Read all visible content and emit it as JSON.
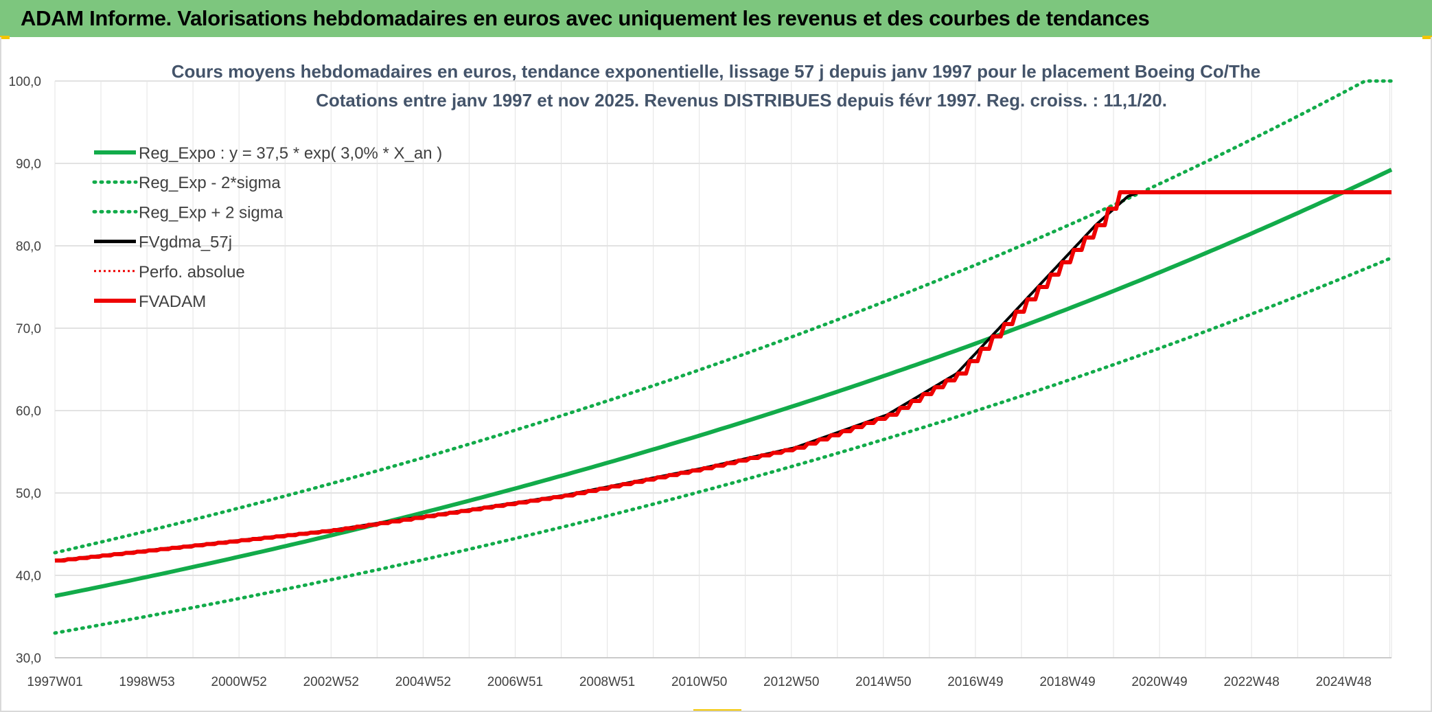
{
  "banner": {
    "title": "ADAM Informe. Valorisations hebdomadaires en euros avec uniquement les revenus et des courbes de tendances"
  },
  "colors": {
    "banner_bg": "#7dc67e",
    "accent_yellow": "#f2c500",
    "green": "#12ab4a",
    "red": "#ee0000",
    "black": "#000000"
  },
  "chart_data": {
    "type": "line",
    "title": "Cours moyens hebdomadaires en euros, tendance exponentielle, lissage 57 j depuis janv 1997 pour le placement Boeing Co/The",
    "subtitle": "Cotations entre janv 1997 et nov 2025. Revenus DISTRIBUES depuis févr 1997. Reg. croiss. : 11,1/20.",
    "xlabel": "",
    "ylabel": "",
    "x_tick_labels": [
      "1997W01",
      "1998W53",
      "2000W52",
      "2002W52",
      "2004W52",
      "2006W51",
      "2008W51",
      "2010W50",
      "2012W50",
      "2014W50",
      "2016W49",
      "2018W49",
      "2020W49",
      "2022W48",
      "2024W48"
    ],
    "y_tick_labels": [
      "30,0",
      "40,0",
      "50,0",
      "60,0",
      "70,0",
      "80,0",
      "90,0",
      "100,0"
    ],
    "ylim": [
      30,
      100
    ],
    "x_range_years": [
      1997.0,
      2025.9
    ],
    "grid": true,
    "legend_position": "top-left",
    "series": [
      {
        "name": "Reg_Expo : y = 37,5 * exp( 3,0% *  X_an )",
        "style": "solid-thick",
        "color": "#12ab4a",
        "formula": {
          "a": 37.5,
          "rate": 0.03,
          "sigma_mult": 1.0
        }
      },
      {
        "name": "Reg_Exp - 2*sigma",
        "style": "dotted",
        "color": "#12ab4a",
        "formula": {
          "a": 37.5,
          "rate": 0.03,
          "sigma_mult": 0.88
        }
      },
      {
        "name": "Reg_Exp + 2 sigma",
        "style": "dotted",
        "color": "#12ab4a",
        "formula": {
          "a": 37.5,
          "rate": 0.03,
          "sigma_mult": 1.14
        }
      },
      {
        "name": "FVgdma_57j",
        "style": "solid",
        "color": "#000000",
        "x": [
          1997.0,
          2003.0,
          2008.0,
          2011.0,
          2013.0,
          2015.0,
          2016.5,
          2017.5,
          2018.5,
          2019.5,
          2020.2,
          2020.45,
          2025.9
        ],
        "y": [
          41.8,
          45.5,
          49.7,
          53.0,
          55.5,
          59.5,
          64.5,
          70.5,
          76.5,
          82.5,
          86.0,
          86.5,
          86.5
        ]
      },
      {
        "name": "Perfo. absolue",
        "style": "dotted",
        "color": "#ee0000",
        "hidden_behind": "FVADAM"
      },
      {
        "name": "FVADAM",
        "style": "solid-thick-stepped",
        "color": "#ee0000",
        "x": [
          1997.0,
          2003.0,
          2008.0,
          2011.0,
          2013.0,
          2015.0,
          2016.5,
          2017.5,
          2018.5,
          2019.5,
          2020.0,
          2020.2,
          2025.9
        ],
        "y": [
          41.8,
          45.5,
          49.7,
          53.0,
          55.5,
          59.5,
          64.5,
          70.5,
          76.5,
          82.5,
          86.5,
          86.5,
          86.5
        ]
      }
    ]
  }
}
